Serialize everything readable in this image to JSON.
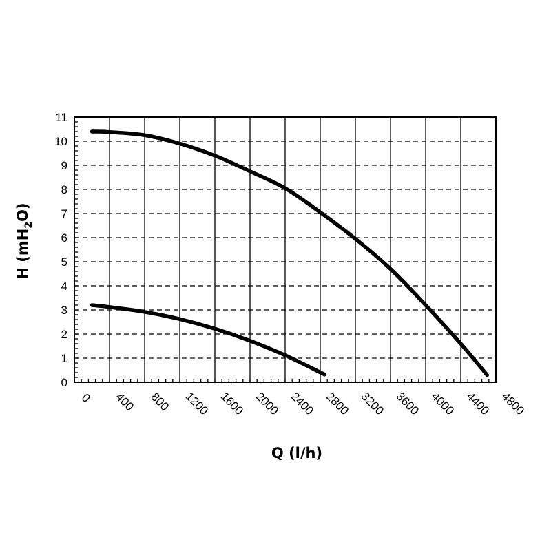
{
  "chart_data": {
    "type": "line",
    "xlabel": "Q (l/h)",
    "ylabel_parts": {
      "main": "H (mH",
      "sub": "2",
      "end": "O)"
    },
    "xlim": [
      0,
      4800
    ],
    "ylim": [
      0,
      11
    ],
    "x_ticks": [
      "0",
      "400",
      "800",
      "1200",
      "1600",
      "2000",
      "2400",
      "2800",
      "3200",
      "3600",
      "4000",
      "4400",
      "4800"
    ],
    "y_ticks": [
      "0",
      "1",
      "2",
      "3",
      "4",
      "5",
      "6",
      "7",
      "8",
      "9",
      "10",
      "11"
    ],
    "grid": true,
    "series": [
      {
        "color": "#000000",
        "x": [
          200,
          400,
          800,
          1200,
          1600,
          2000,
          2400,
          2800,
          3200,
          3600,
          4000,
          4400,
          4700
        ],
        "y": [
          10.4,
          10.38,
          10.25,
          9.9,
          9.4,
          8.75,
          8.05,
          7.05,
          5.95,
          4.7,
          3.2,
          1.6,
          0.3
        ]
      },
      {
        "color": "#000000",
        "x": [
          200,
          400,
          800,
          1200,
          1600,
          2000,
          2400,
          2850
        ],
        "y": [
          3.2,
          3.12,
          2.92,
          2.62,
          2.22,
          1.72,
          1.12,
          0.32
        ]
      }
    ]
  }
}
